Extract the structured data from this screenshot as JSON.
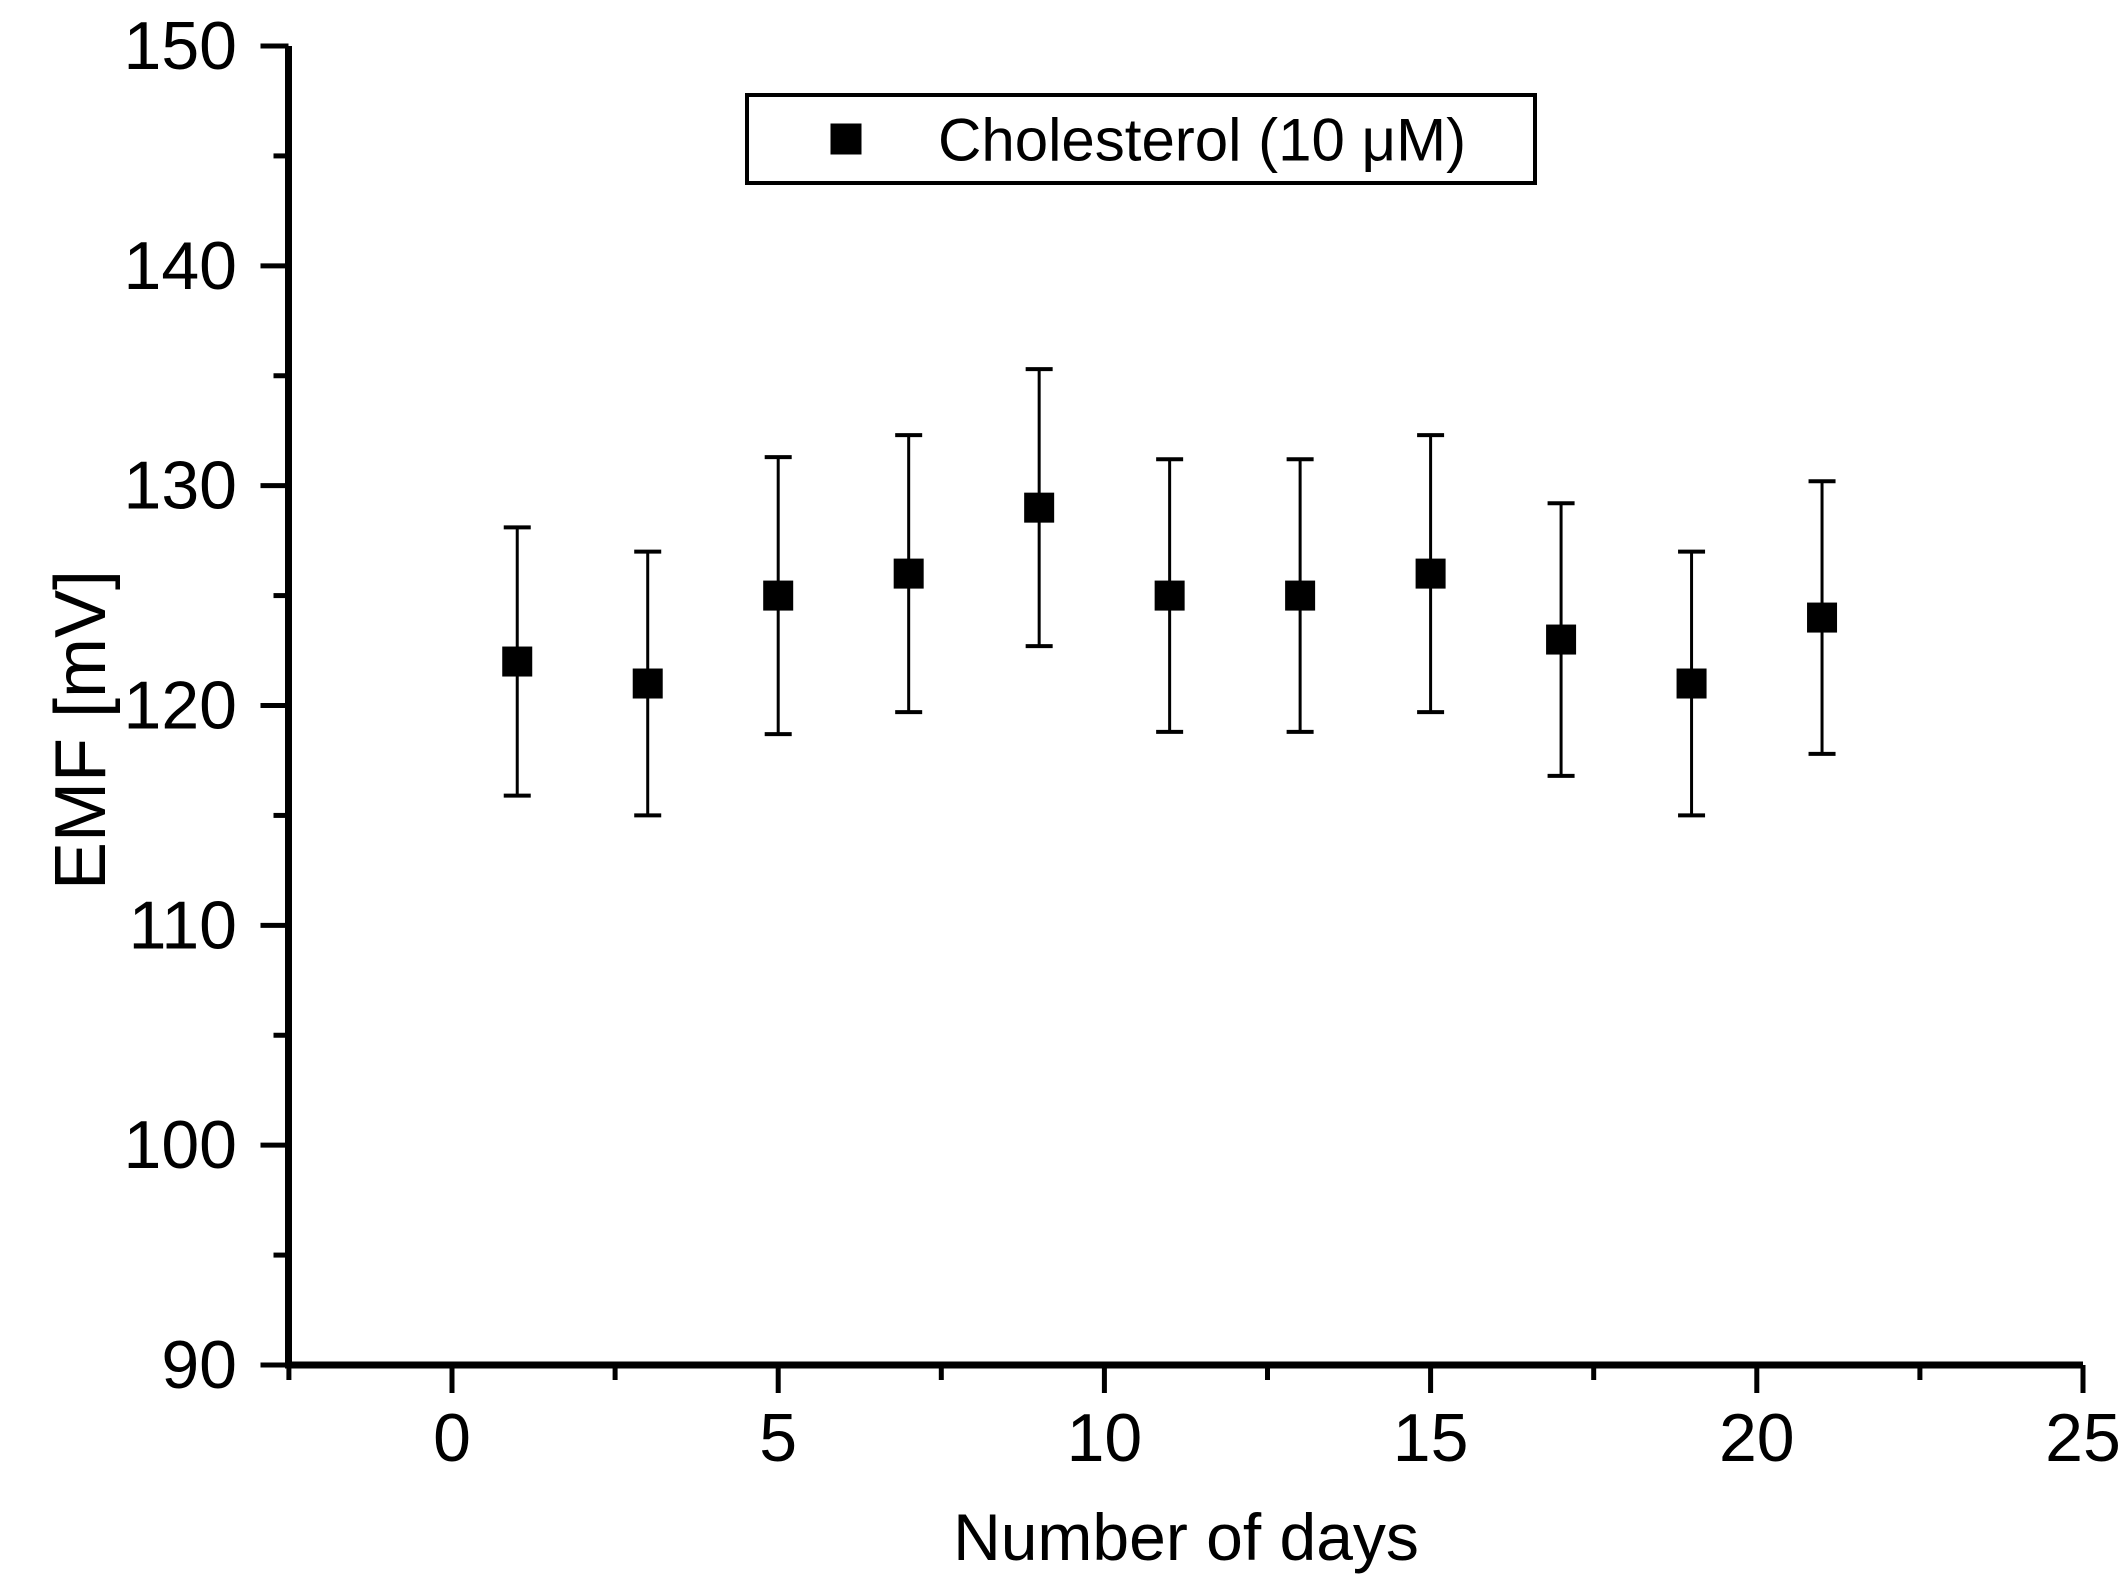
{
  "figure": {
    "background": "#ffffff"
  },
  "style": {
    "marker_color": "#000000",
    "error_bar_color": "#000000",
    "axis_color": "#000000",
    "text_color": "#000000",
    "legend_border_color": "#000000",
    "legend_fill": "#ffffff"
  },
  "chart_data": {
    "type": "scatter",
    "title": "",
    "xlabel": "Number of days",
    "ylabel": "EMF [mV]",
    "x": [
      1,
      3,
      5,
      7,
      9,
      11,
      13,
      15,
      17,
      19,
      21
    ],
    "y": [
      122,
      121,
      125,
      126,
      129,
      125,
      125,
      126,
      123,
      121,
      124
    ],
    "yerr": [
      6.1,
      6.0,
      6.3,
      6.3,
      6.3,
      6.2,
      6.2,
      6.3,
      6.2,
      6.0,
      6.2
    ],
    "xlim": [
      -2.5,
      25
    ],
    "ylim": [
      90,
      150
    ],
    "x_major_ticks": [
      0,
      5,
      10,
      15,
      20,
      25
    ],
    "x_minor_ticks": [
      -2.5,
      2.5,
      7.5,
      12.5,
      17.5,
      22.5
    ],
    "y_major_ticks": [
      90,
      100,
      110,
      120,
      130,
      140,
      150
    ],
    "y_minor_ticks": [
      95,
      105,
      115,
      125,
      135,
      145
    ],
    "x_tick_labels": [
      "0",
      "5",
      "10",
      "15",
      "20",
      "25"
    ],
    "y_tick_labels": [
      "90",
      "100",
      "110",
      "120",
      "130",
      "140",
      "150"
    ],
    "grid": false,
    "marker": "filled-square",
    "legend": {
      "label": "Cholesterol (10 μM)",
      "position": "top-center"
    }
  }
}
